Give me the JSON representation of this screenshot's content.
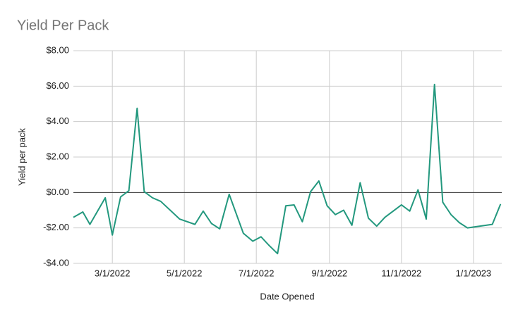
{
  "chart_data": {
    "type": "line",
    "title": "Yield Per Pack",
    "x_label": "Date Opened",
    "y_label": "Yield per pack",
    "x": [
      "1/27/2022",
      "2/4/2022",
      "2/10/2022",
      "2/23/2022",
      "3/1/2022",
      "3/8/2022",
      "3/15/2022",
      "3/22/2022",
      "3/28/2022",
      "4/4/2022",
      "4/11/2022",
      "4/27/2022",
      "5/10/2022",
      "5/17/2022",
      "5/24/2022",
      "5/31/2022",
      "6/8/2022",
      "6/20/2022",
      "6/28/2022",
      "7/5/2022",
      "7/12/2022",
      "7/19/2022",
      "7/26/2022",
      "8/2/2022",
      "8/9/2022",
      "8/16/2022",
      "8/23/2022",
      "8/30/2022",
      "9/6/2022",
      "9/13/2022",
      "9/20/2022",
      "9/27/2022",
      "10/4/2022",
      "10/11/2022",
      "10/18/2022",
      "11/1/2022",
      "11/8/2022",
      "11/15/2022",
      "11/22/2022",
      "11/29/2022",
      "12/6/2022",
      "12/13/2022",
      "12/20/2022",
      "12/27/2022",
      "1/17/2023",
      "1/24/2023"
    ],
    "series": [
      {
        "name": "Yield per pack",
        "color": "#23987e",
        "values": [
          -1.4,
          -1.1,
          -1.8,
          -0.3,
          -2.4,
          -0.25,
          0.1,
          4.75,
          0.05,
          -0.3,
          -0.5,
          -1.5,
          -1.8,
          -1.05,
          -1.75,
          -2.05,
          -0.1,
          -2.3,
          -2.75,
          -2.5,
          -3.0,
          -3.45,
          -0.75,
          -0.7,
          -1.65,
          0.05,
          0.65,
          -0.75,
          -1.25,
          -1.0,
          -1.85,
          0.55,
          -1.45,
          -1.9,
          -1.4,
          -0.7,
          -1.05,
          0.15,
          -1.5,
          6.1,
          -0.55,
          -1.25,
          -1.7,
          -2.0,
          -1.8,
          -0.65
        ]
      }
    ],
    "xlim": [
      "1/27/2022",
      "1/25/2023"
    ],
    "xticks": [
      "3/1/2022",
      "5/1/2022",
      "7/1/2022",
      "9/1/2022",
      "11/1/2022",
      "1/1/2023"
    ],
    "ylim": [
      -4,
      8
    ],
    "yticks": [
      {
        "value": -4,
        "label": "-$4.00"
      },
      {
        "value": -2,
        "label": "-$2.00"
      },
      {
        "value": 0,
        "label": "$0.00"
      },
      {
        "value": 2,
        "label": "$2.00"
      },
      {
        "value": 4,
        "label": "$4.00"
      },
      {
        "value": 6,
        "label": "$6.00"
      },
      {
        "value": 8,
        "label": "$8.00"
      }
    ],
    "grid": true
  }
}
